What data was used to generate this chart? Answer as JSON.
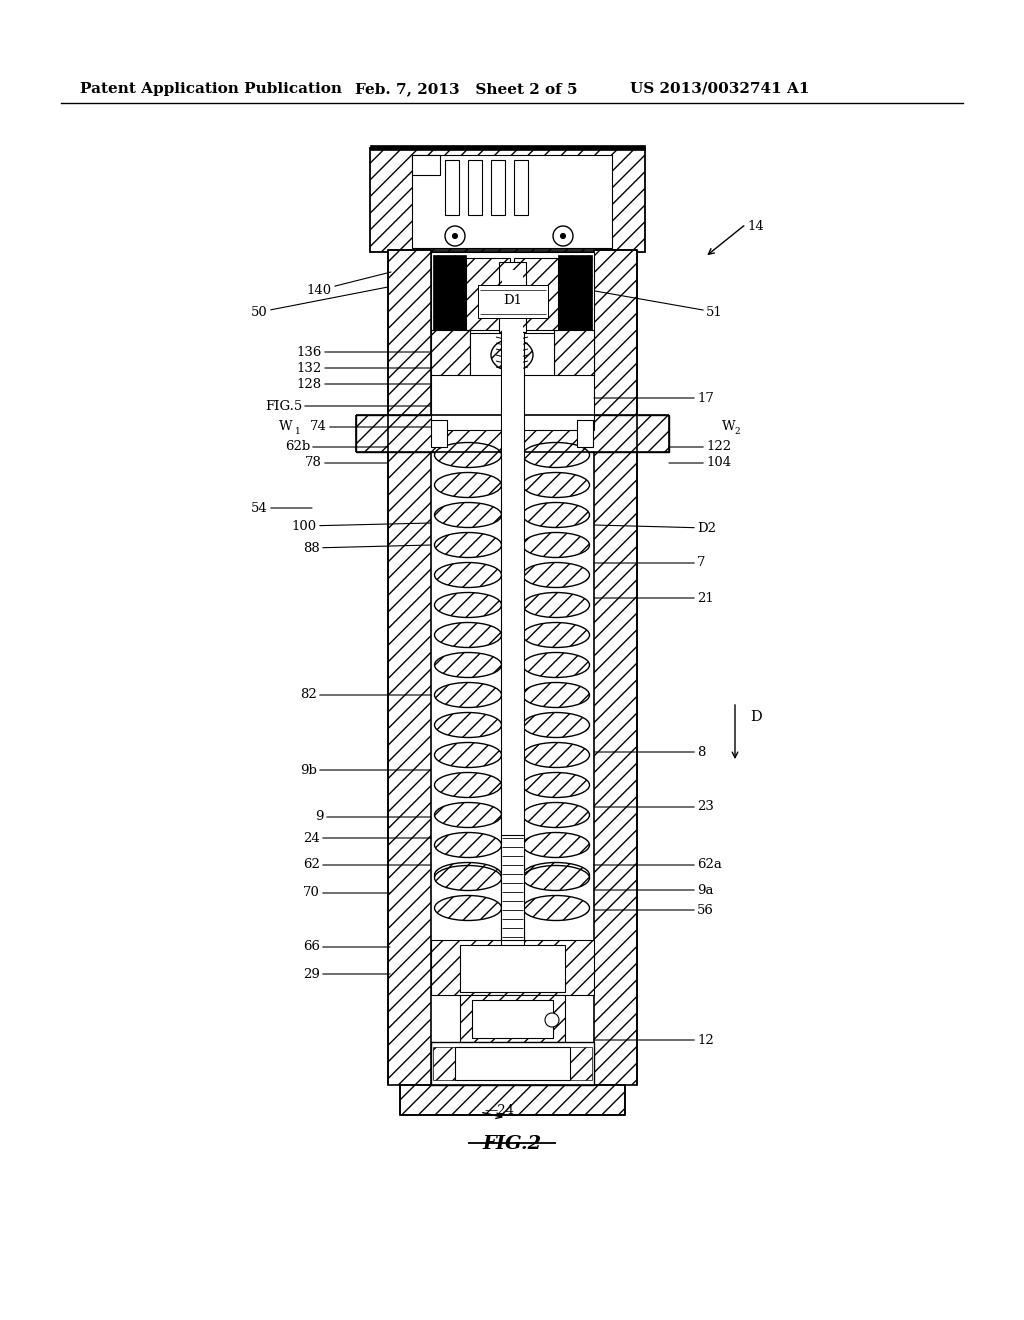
{
  "bg_color": "#ffffff",
  "header_left": "Patent Application Publication",
  "header_mid": "Feb. 7, 2013   Sheet 2 of 5",
  "header_right": "US 2013/0032741 A1",
  "fig_label": "FIG.2",
  "ref_14": "14",
  "arrow_D": "D",
  "label_fontsize": 9.5,
  "header_fontsize": 11
}
